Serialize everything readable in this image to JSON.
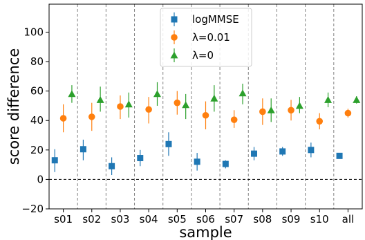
{
  "chart_data": {
    "type": "scatter",
    "categories": [
      "s01",
      "s02",
      "s03",
      "s04",
      "s05",
      "s06",
      "s07",
      "s08",
      "s09",
      "s10",
      "all"
    ],
    "xlabel": "sample",
    "ylabel": "score difference",
    "ylim": [
      -20,
      119
    ],
    "yticks": [
      -20,
      0,
      20,
      40,
      60,
      80,
      100
    ],
    "legend_position": "top-center",
    "category_separators": "dashed",
    "zero_line": "dashed",
    "series": [
      {
        "name": "logMMSE",
        "marker": "square",
        "color": "#1f77b4",
        "values": [
          13,
          20.5,
          9,
          14.5,
          24,
          12,
          10.5,
          17.5,
          19,
          20,
          16
        ],
        "err_low": [
          5,
          13,
          3,
          9,
          16,
          6,
          7.5,
          13,
          16,
          15,
          14.5
        ],
        "err_high": [
          20.5,
          27,
          15,
          20,
          32,
          18,
          13,
          22,
          22,
          25,
          17.5
        ]
      },
      {
        "name": "λ=0.01",
        "marker": "circle",
        "color": "#ff7f0e",
        "values": [
          41.5,
          42.5,
          49.5,
          47.5,
          52,
          43.5,
          40.5,
          46,
          47,
          39.5,
          45
        ],
        "err_low": [
          32,
          33,
          41,
          38,
          44,
          34,
          35,
          37,
          40,
          34,
          42
        ],
        "err_high": [
          51,
          52,
          57,
          56,
          60,
          53,
          47,
          55,
          54,
          45,
          48
        ]
      },
      {
        "name": "λ=0",
        "marker": "triangle",
        "color": "#2ca02c",
        "values": [
          58,
          54,
          51,
          58,
          50.5,
          55,
          58.5,
          47,
          50,
          54,
          54
        ],
        "err_low": [
          52,
          46,
          42,
          50,
          41,
          46,
          51,
          39,
          45,
          49,
          51.5
        ],
        "err_high": [
          64,
          63,
          59,
          66,
          58,
          64,
          65,
          55,
          56,
          59,
          56.5
        ]
      }
    ]
  }
}
